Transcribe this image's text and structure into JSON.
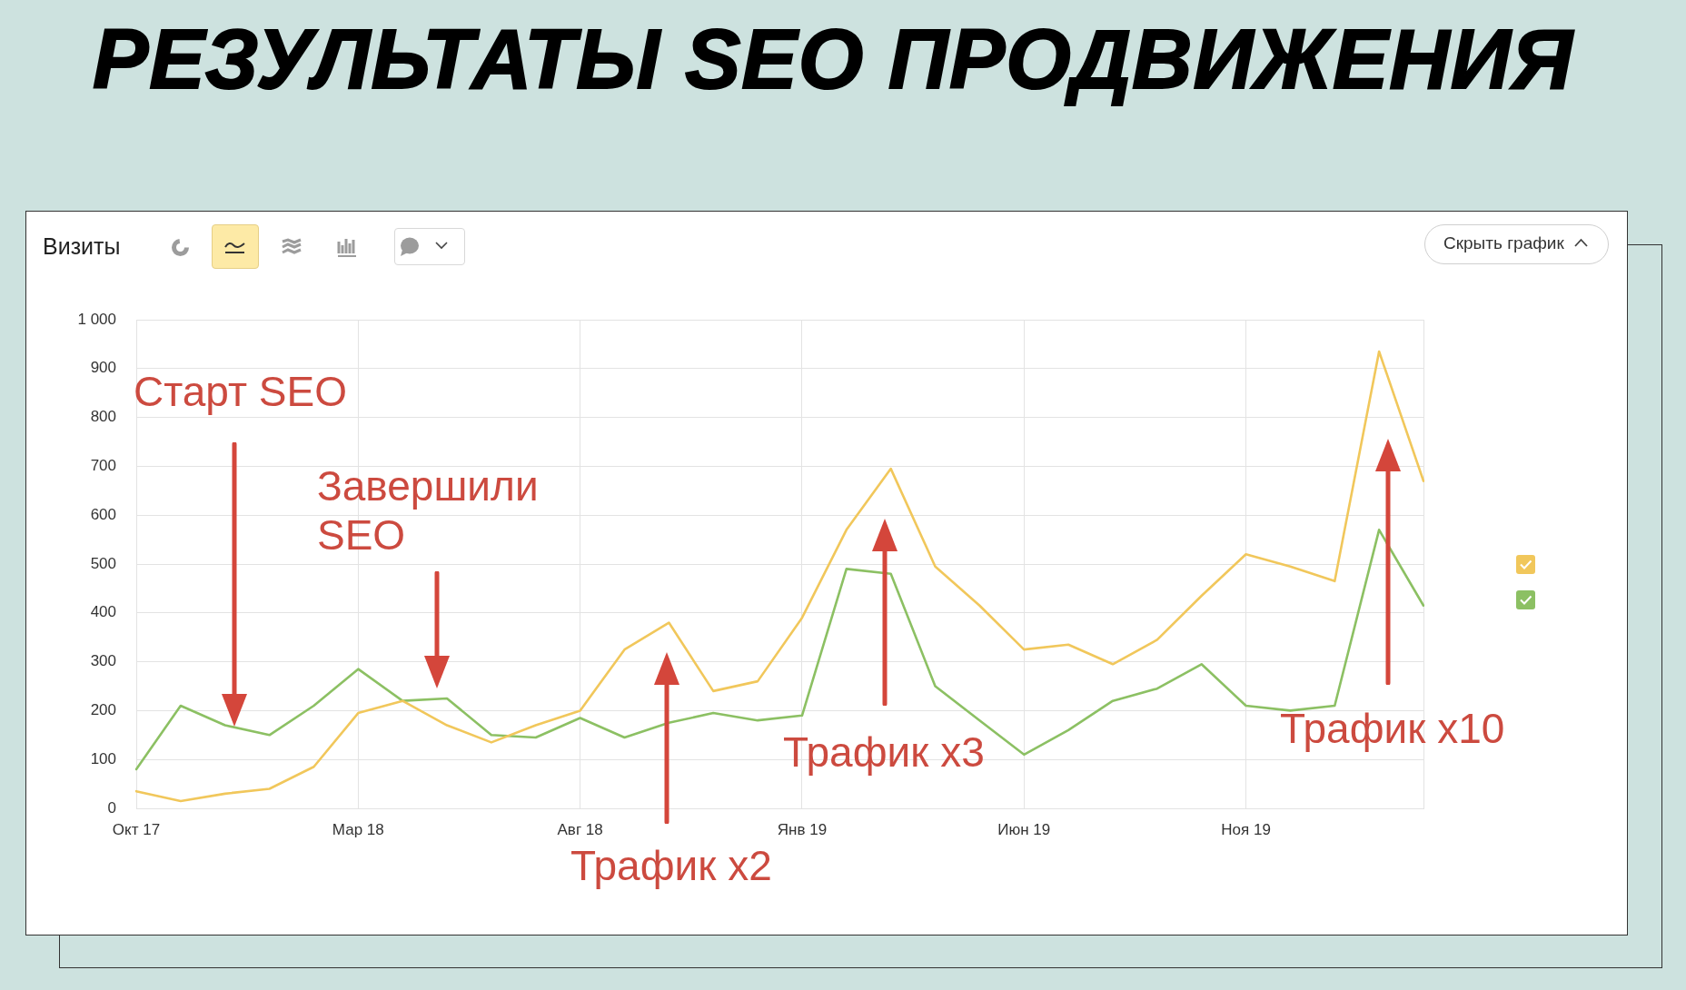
{
  "chart_data": {
    "type": "line",
    "title": "РЕЗУЛЬТАТЫ SEO ПРОДВИЖЕНИЯ",
    "subtitle": "Визиты",
    "categories": [
      "Окт 17",
      null,
      null,
      null,
      null,
      "Мар 18",
      null,
      null,
      null,
      null,
      "Авг 18",
      null,
      null,
      null,
      null,
      "Янв 19",
      null,
      null,
      null,
      null,
      "Июн 19",
      null,
      null,
      null,
      null,
      "Ноя 19",
      null,
      null,
      null,
      null
    ],
    "series": [
      {
        "color": "#f1c75b",
        "values": [
          35,
          15,
          30,
          40,
          85,
          195,
          220,
          170,
          135,
          170,
          200,
          325,
          380,
          240,
          260,
          390,
          570,
          695,
          495,
          415,
          325,
          335,
          295,
          345,
          435,
          520,
          495,
          465,
          935,
          670
        ]
      },
      {
        "color": "#8cc063",
        "values": [
          80,
          210,
          170,
          150,
          210,
          285,
          220,
          225,
          150,
          145,
          185,
          145,
          175,
          195,
          180,
          190,
          490,
          480,
          250,
          180,
          110,
          160,
          220,
          245,
          295,
          210,
          200,
          210,
          570,
          415
        ]
      }
    ],
    "ylim": [
      0,
      1000
    ],
    "yticks": [
      0,
      100,
      200,
      300,
      400,
      500,
      600,
      700,
      800,
      900,
      {
        "value": 1000,
        "label": "1 000"
      }
    ],
    "grid": true,
    "marker": "none",
    "line_style": "solid",
    "annotations": [
      "Старт SEO",
      "Завершили SEO",
      "Трафик x2",
      "Трафик x3",
      "Трафик x10",
      "Скрыть график"
    ]
  }
}
